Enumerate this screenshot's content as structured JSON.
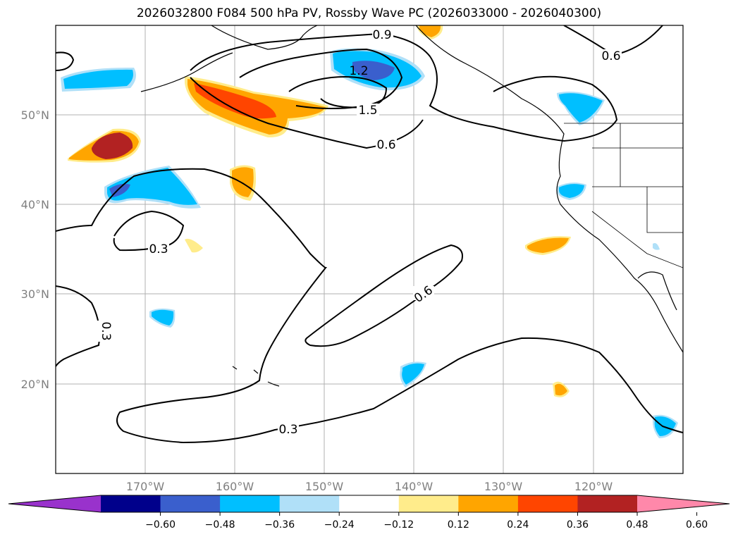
{
  "title": "2026032800 F084 500 hPa PV, Rossby Wave PC (2026033000 - 2026040300)",
  "map": {
    "lat_labels": [
      "50°N",
      "40°N",
      "30°N",
      "20°N"
    ],
    "lon_labels": [
      "170°W",
      "160°W",
      "150°W",
      "140°W",
      "130°W",
      "120°W"
    ],
    "contour_labels": [
      "0.9",
      "1.2",
      "1.5",
      "0.6",
      "0.6",
      "0.3",
      "0.6",
      "0.3",
      "0.3"
    ]
  },
  "colorbar": {
    "ticks": [
      "−0.60",
      "−0.48",
      "−0.36",
      "−0.24",
      "−0.12",
      "0.12",
      "0.24",
      "0.36",
      "0.48",
      "0.60"
    ],
    "colors": [
      "#9932cc",
      "#00008b",
      "#3a5fcd",
      "#00bfff",
      "#b0e0f8",
      "#ffffff",
      "#ffec8b",
      "#ffa500",
      "#ff4500",
      "#b22222",
      "#ff88aa"
    ]
  }
}
